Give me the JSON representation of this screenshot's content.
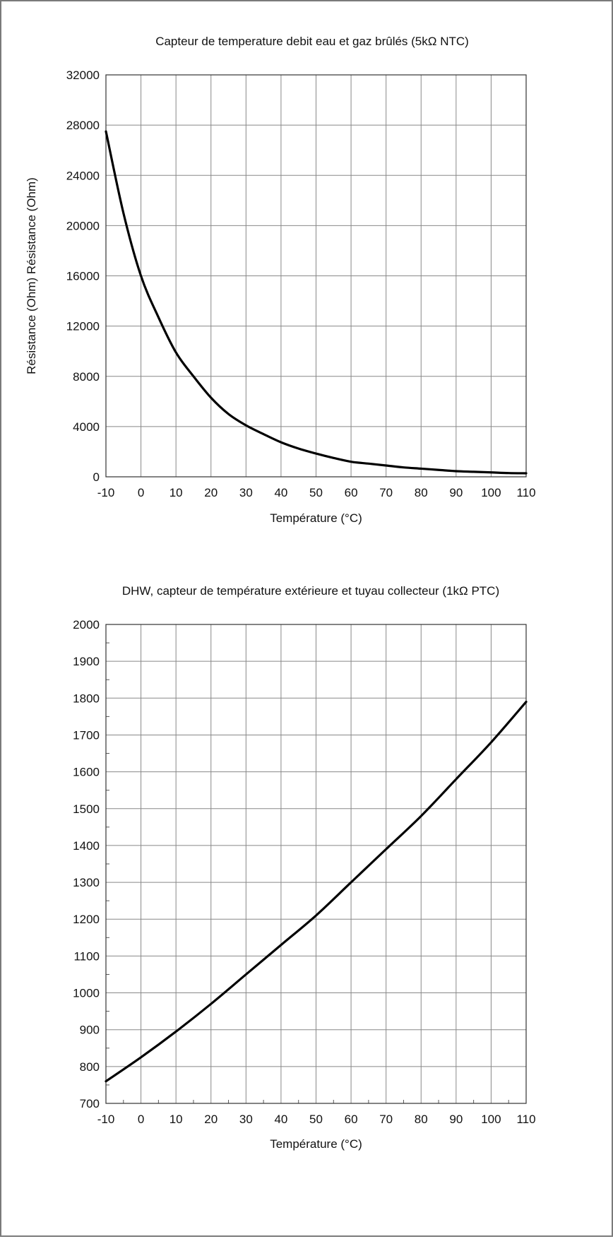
{
  "chart_data": [
    {
      "type": "line",
      "title": "Capteur de temperature debit eau et gaz brûlés (5kΩ NTC)",
      "xlabel": "Température (°C)",
      "ylabel": "Résistance (Ohm) Résistance (Ohm)",
      "xlim": [
        -10,
        110
      ],
      "ylim": [
        0,
        32000
      ],
      "x_ticks": [
        "-10",
        "0",
        "10",
        "20",
        "30",
        "40",
        "50",
        "60",
        "70",
        "80",
        "90",
        "100",
        "110"
      ],
      "y_ticks": [
        "0",
        "4000",
        "8000",
        "12000",
        "16000",
        "20000",
        "24000",
        "28000",
        "32000"
      ],
      "x_tick_values": [
        -10,
        0,
        10,
        20,
        30,
        40,
        50,
        60,
        70,
        80,
        90,
        100,
        110
      ],
      "y_tick_values": [
        0,
        4000,
        8000,
        12000,
        16000,
        20000,
        24000,
        28000,
        32000
      ],
      "grid": true,
      "series": [
        {
          "color": "#000000",
          "x": [
            -10,
            -5,
            0,
            5,
            10,
            15,
            20,
            25,
            30,
            35,
            40,
            45,
            50,
            55,
            60,
            65,
            70,
            75,
            80,
            85,
            90,
            95,
            100,
            105,
            110
          ],
          "y": [
            27500,
            21000,
            16000,
            12700,
            9900,
            8000,
            6300,
            5000,
            4100,
            3400,
            2750,
            2250,
            1850,
            1500,
            1200,
            1050,
            900,
            750,
            650,
            550,
            450,
            400,
            350,
            300,
            280
          ]
        }
      ]
    },
    {
      "type": "line",
      "title": "DHW, capteur de température extérieure et tuyau collecteur (1kΩ PTC)",
      "xlabel": "Température (°C)",
      "ylabel": "",
      "xlim": [
        -10,
        110
      ],
      "ylim": [
        700,
        2000
      ],
      "x_ticks": [
        "-10",
        "0",
        "10",
        "20",
        "30",
        "40",
        "50",
        "60",
        "70",
        "80",
        "90",
        "100",
        "110"
      ],
      "y_ticks": [
        "700",
        "800",
        "900",
        "1000",
        "1100",
        "1200",
        "1300",
        "1400",
        "1500",
        "1600",
        "1700",
        "1800",
        "1900",
        "2000"
      ],
      "x_tick_values": [
        -10,
        0,
        10,
        20,
        30,
        40,
        50,
        60,
        70,
        80,
        90,
        100,
        110
      ],
      "y_tick_values": [
        700,
        800,
        900,
        1000,
        1100,
        1200,
        1300,
        1400,
        1500,
        1600,
        1700,
        1800,
        1900,
        2000
      ],
      "grid": true,
      "series": [
        {
          "color": "#000000",
          "x": [
            -10,
            0,
            10,
            20,
            30,
            40,
            50,
            60,
            70,
            80,
            90,
            100,
            110
          ],
          "y": [
            760,
            825,
            895,
            970,
            1050,
            1130,
            1210,
            1300,
            1390,
            1480,
            1580,
            1680,
            1790
          ]
        }
      ]
    }
  ]
}
